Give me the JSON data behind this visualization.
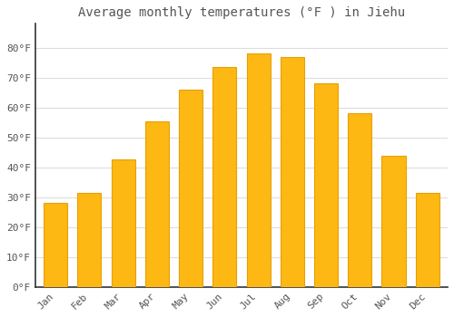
{
  "title": "Average monthly temperatures (°F ) in Jiehu",
  "months": [
    "Jan",
    "Feb",
    "Mar",
    "Apr",
    "May",
    "Jun",
    "Jul",
    "Aug",
    "Sep",
    "Oct",
    "Nov",
    "Dec"
  ],
  "values": [
    28,
    31.5,
    42.5,
    55.5,
    66,
    73.5,
    78,
    77,
    68,
    58,
    44,
    31.5
  ],
  "bar_color": "#FDB813",
  "bar_edge_color": "#E8A000",
  "background_color": "#FFFFFF",
  "grid_color": "#DDDDDD",
  "ylim": [
    0,
    88
  ],
  "yticks": [
    0,
    10,
    20,
    30,
    40,
    50,
    60,
    70,
    80
  ],
  "ytick_labels": [
    "0°F",
    "10°F",
    "20°F",
    "30°F",
    "40°F",
    "50°F",
    "60°F",
    "70°F",
    "80°F"
  ],
  "title_fontsize": 10,
  "tick_fontsize": 8,
  "label_color": "#555555",
  "font_family": "monospace",
  "bar_width": 0.7
}
